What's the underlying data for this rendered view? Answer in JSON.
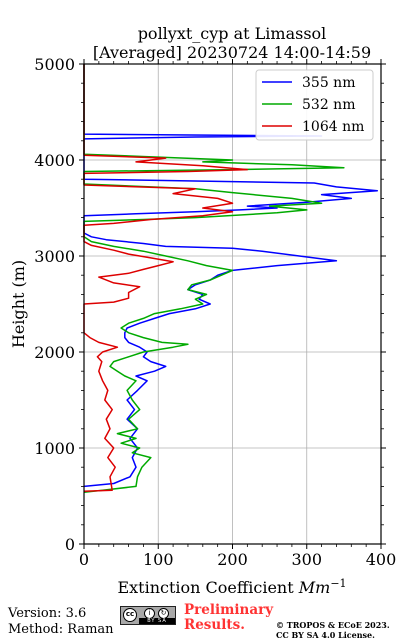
{
  "chart_data": {
    "type": "line",
    "title": "pollyxt_cyp at Limassol",
    "subtitle": "[Averaged] 20230724 14:00-14:59",
    "xlabel_prefix": "Extinction Coefficient ",
    "xlabel_unit": "Mm",
    "xlabel_exp": "−1",
    "ylabel": "Height (m)",
    "xlim": [
      0,
      400
    ],
    "ylim": [
      0,
      5000
    ],
    "x_ticks": [
      "0",
      "100",
      "200",
      "300",
      "400"
    ],
    "y_ticks": [
      "0",
      "1000",
      "2000",
      "3000",
      "4000",
      "5000"
    ],
    "grid": true,
    "legend_position": "top-right",
    "series": [
      {
        "name": "355 nm",
        "color": "#0000ff",
        "points": [
          [
            0,
            600
          ],
          [
            40,
            630
          ],
          [
            62,
            700
          ],
          [
            70,
            800
          ],
          [
            65,
            900
          ],
          [
            72,
            1000
          ],
          [
            62,
            1100
          ],
          [
            72,
            1200
          ],
          [
            58,
            1300
          ],
          [
            68,
            1400
          ],
          [
            58,
            1500
          ],
          [
            72,
            1600
          ],
          [
            85,
            1700
          ],
          [
            70,
            1750
          ],
          [
            95,
            1800
          ],
          [
            110,
            1850
          ],
          [
            90,
            1900
          ],
          [
            80,
            1950
          ],
          [
            85,
            2000
          ],
          [
            75,
            2050
          ],
          [
            60,
            2100
          ],
          [
            55,
            2150
          ],
          [
            55,
            2200
          ],
          [
            58,
            2250
          ],
          [
            75,
            2300
          ],
          [
            95,
            2350
          ],
          [
            115,
            2400
          ],
          [
            150,
            2450
          ],
          [
            170,
            2500
          ],
          [
            155,
            2550
          ],
          [
            160,
            2600
          ],
          [
            140,
            2650
          ],
          [
            150,
            2700
          ],
          [
            170,
            2750
          ],
          [
            180,
            2800
          ],
          [
            200,
            2850
          ],
          [
            260,
            2900
          ],
          [
            340,
            2950
          ],
          [
            290,
            3000
          ],
          [
            240,
            3050
          ],
          [
            200,
            3080
          ],
          [
            110,
            3100
          ],
          [
            80,
            3130
          ],
          [
            30,
            3170
          ],
          [
            10,
            3200
          ],
          [
            0,
            3240
          ],
          [
            0,
            3420
          ],
          [
            70,
            3440
          ],
          [
            150,
            3460
          ],
          [
            210,
            3480
          ],
          [
            260,
            3500
          ],
          [
            220,
            3520
          ],
          [
            300,
            3560
          ],
          [
            360,
            3600
          ],
          [
            320,
            3640
          ],
          [
            395,
            3680
          ],
          [
            340,
            3720
          ],
          [
            310,
            3760
          ],
          [
            0,
            3800
          ],
          [
            0,
            4220
          ],
          [
            150,
            4240
          ],
          [
            320,
            4250
          ],
          [
            0,
            4270
          ],
          [
            0,
            5000
          ]
        ]
      },
      {
        "name": "532 nm",
        "color": "#00aa00",
        "points": [
          [
            0,
            540
          ],
          [
            25,
            560
          ],
          [
            70,
            600
          ],
          [
            72,
            700
          ],
          [
            78,
            800
          ],
          [
            90,
            900
          ],
          [
            65,
            950
          ],
          [
            75,
            1000
          ],
          [
            50,
            1050
          ],
          [
            70,
            1100
          ],
          [
            45,
            1150
          ],
          [
            72,
            1200
          ],
          [
            60,
            1300
          ],
          [
            75,
            1400
          ],
          [
            65,
            1500
          ],
          [
            58,
            1600
          ],
          [
            70,
            1700
          ],
          [
            55,
            1750
          ],
          [
            45,
            1800
          ],
          [
            35,
            1850
          ],
          [
            40,
            1900
          ],
          [
            60,
            1950
          ],
          [
            80,
            2000
          ],
          [
            120,
            2050
          ],
          [
            140,
            2080
          ],
          [
            105,
            2100
          ],
          [
            80,
            2150
          ],
          [
            60,
            2200
          ],
          [
            50,
            2250
          ],
          [
            60,
            2300
          ],
          [
            80,
            2350
          ],
          [
            95,
            2400
          ],
          [
            130,
            2450
          ],
          [
            160,
            2500
          ],
          [
            150,
            2550
          ],
          [
            165,
            2600
          ],
          [
            140,
            2650
          ],
          [
            145,
            2700
          ],
          [
            170,
            2750
          ],
          [
            185,
            2800
          ],
          [
            200,
            2850
          ],
          [
            165,
            2900
          ],
          [
            140,
            2950
          ],
          [
            110,
            3000
          ],
          [
            80,
            3050
          ],
          [
            40,
            3100
          ],
          [
            10,
            3150
          ],
          [
            0,
            3200
          ],
          [
            0,
            3360
          ],
          [
            80,
            3380
          ],
          [
            150,
            3400
          ],
          [
            260,
            3450
          ],
          [
            300,
            3480
          ],
          [
            250,
            3520
          ],
          [
            320,
            3550
          ],
          [
            280,
            3600
          ],
          [
            200,
            3660
          ],
          [
            150,
            3700
          ],
          [
            0,
            3750
          ],
          [
            0,
            3880
          ],
          [
            200,
            3900
          ],
          [
            350,
            3920
          ],
          [
            280,
            3950
          ],
          [
            160,
            3980
          ],
          [
            200,
            4000
          ],
          [
            100,
            4030
          ],
          [
            0,
            4060
          ],
          [
            0,
            5000
          ]
        ]
      },
      {
        "name": "1064 nm",
        "color": "#dd0000",
        "points": [
          [
            0,
            550
          ],
          [
            38,
            560
          ],
          [
            35,
            700
          ],
          [
            42,
            800
          ],
          [
            32,
            900
          ],
          [
            40,
            1000
          ],
          [
            28,
            1100
          ],
          [
            35,
            1200
          ],
          [
            30,
            1300
          ],
          [
            38,
            1400
          ],
          [
            28,
            1500
          ],
          [
            32,
            1600
          ],
          [
            25,
            1700
          ],
          [
            20,
            1800
          ],
          [
            24,
            1900
          ],
          [
            18,
            1950
          ],
          [
            25,
            2000
          ],
          [
            45,
            2050
          ],
          [
            20,
            2100
          ],
          [
            8,
            2150
          ],
          [
            0,
            2200
          ],
          [
            0,
            2500
          ],
          [
            40,
            2520
          ],
          [
            60,
            2560
          ],
          [
            60,
            2620
          ],
          [
            75,
            2680
          ],
          [
            40,
            2720
          ],
          [
            20,
            2780
          ],
          [
            60,
            2820
          ],
          [
            80,
            2860
          ],
          [
            100,
            2900
          ],
          [
            120,
            2940
          ],
          [
            90,
            2980
          ],
          [
            60,
            3020
          ],
          [
            40,
            3060
          ],
          [
            10,
            3110
          ],
          [
            0,
            3150
          ],
          [
            0,
            3320
          ],
          [
            40,
            3340
          ],
          [
            90,
            3380
          ],
          [
            160,
            3420
          ],
          [
            200,
            3460
          ],
          [
            160,
            3500
          ],
          [
            200,
            3550
          ],
          [
            180,
            3600
          ],
          [
            120,
            3650
          ],
          [
            150,
            3700
          ],
          [
            0,
            3740
          ],
          [
            0,
            3860
          ],
          [
            140,
            3880
          ],
          [
            220,
            3900
          ],
          [
            160,
            3940
          ],
          [
            70,
            3980
          ],
          [
            110,
            4020
          ],
          [
            0,
            4050
          ],
          [
            0,
            5000
          ]
        ]
      }
    ]
  },
  "footer": {
    "version": "Version: 3.6",
    "method": "Method: Raman",
    "preliminary_line1": "Preliminary",
    "preliminary_line2": "Results.",
    "copyright_line1": "© TROPOS & ECoE 2023.",
    "copyright_line2": "CC BY SA 4.0 License."
  },
  "license_badge": {
    "icons": [
      "cc-icon",
      "by-icon",
      "sa-icon"
    ],
    "text": "BY   SA",
    "colors": {
      "badge": "#a8a8a8",
      "preliminary": "#ff3333"
    }
  }
}
